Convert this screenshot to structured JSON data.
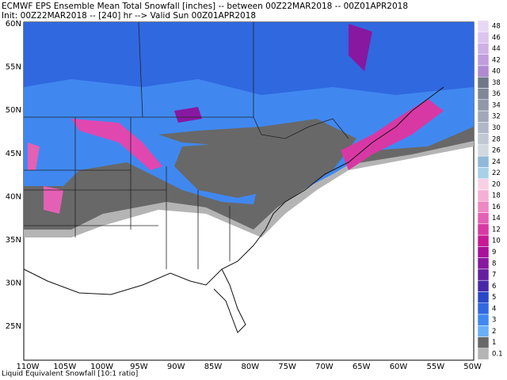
{
  "header": {
    "line1": "ECMWF EPS Ensemble Mean Total Snowfall [inches] -- between 00Z22MAR2018 -- 00Z01APR2018",
    "line2": "Init: 00Z22MAR2018 -- [240] hr --> Valid Sun 00Z01APR2018"
  },
  "lat_labels": [
    "60N",
    "55N",
    "50N",
    "45N",
    "40N",
    "35N",
    "30N",
    "25N"
  ],
  "lon_labels": [
    "110W",
    "105W",
    "100W",
    "95W",
    "90W",
    "85W",
    "80W",
    "75W",
    "70W",
    "65W",
    "60W",
    "55W",
    "50W"
  ],
  "colorbar": {
    "labels": [
      48,
      46,
      44,
      42,
      40,
      38,
      36,
      34,
      32,
      30,
      28,
      26,
      24,
      22,
      20,
      18,
      16,
      14,
      12,
      10,
      9,
      8,
      7,
      6,
      5,
      4,
      3,
      2,
      1,
      0.1
    ],
    "colors": [
      "#e8d8f4",
      "#dcc4ee",
      "#ceb0e6",
      "#c09cdc",
      "#b08ad0",
      "#707888",
      "#808898",
      "#9098a8",
      "#a0a8b8",
      "#b0b8c8",
      "#c0c8d4",
      "#d0d8e0",
      "#90b8d8",
      "#a8d0e8",
      "#f8d0e4",
      "#f4b0d4",
      "#ec88c4",
      "#e460b4",
      "#d838a4",
      "#c81896",
      "#a8109a",
      "#8818a0",
      "#6420a0",
      "#4828a8",
      "#2848c8",
      "#3068e0",
      "#4088f0",
      "#68b0f8",
      "#686868",
      "#b4b4b4"
    ]
  },
  "footer": "Liquid Equivalent Snowfall [10:1 ratio]"
}
